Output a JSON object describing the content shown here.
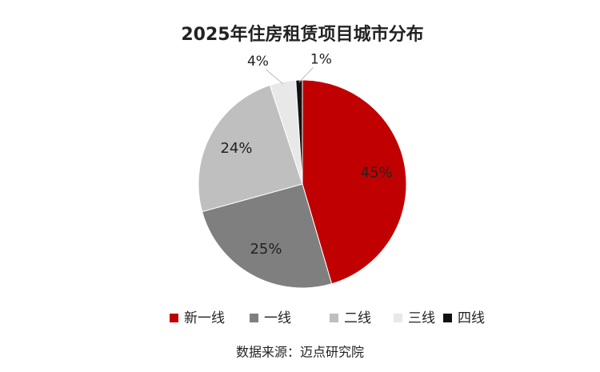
{
  "chart_data": {
    "type": "pie",
    "title": "2025年住房租赁项目城市分布",
    "categories": [
      "新一线",
      "一线",
      "二线",
      "三线",
      "四线"
    ],
    "values": [
      45,
      25,
      24,
      4,
      1
    ],
    "value_labels": [
      "45%",
      "25%",
      "24%",
      "4%",
      "1%"
    ],
    "colors": [
      "#c00000",
      "#7f7f7f",
      "#bfbfbf",
      "#e8e8e8",
      "#111111"
    ],
    "legend": "bottom",
    "source": "数据来源：迈点研究院"
  }
}
